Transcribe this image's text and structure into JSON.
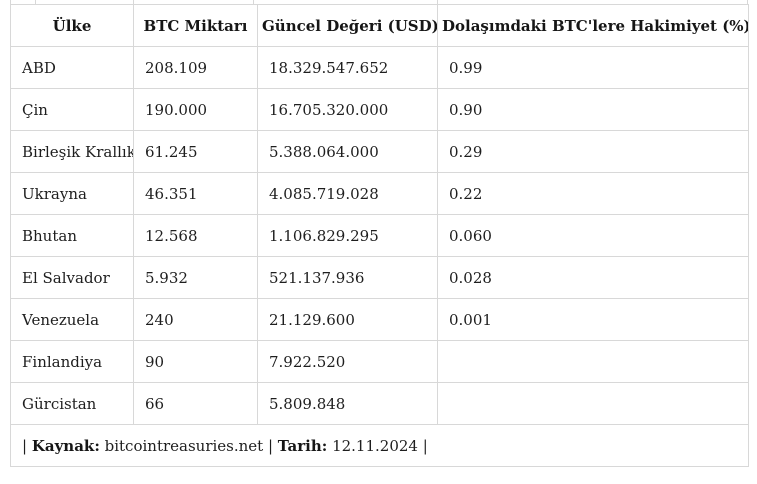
{
  "chart_data": {
    "type": "table",
    "title": "",
    "columns": [
      "Ülke",
      "BTC Miktarı",
      "Güncel Değeri (USD)",
      "Dolaşımdaki BTC'lere Hakimiyet (%)"
    ],
    "rows": [
      [
        "ABD",
        "208.109",
        "18.329.547.652",
        "0.99"
      ],
      [
        "Çin",
        "190.000",
        "16.705.320.000",
        "0.90"
      ],
      [
        "Birleşik Krallık",
        "61.245",
        "5.388.064.000",
        "0.29"
      ],
      [
        "Ukrayna",
        "46.351",
        "4.085.719.028",
        "0.22"
      ],
      [
        "Bhutan",
        "12.568",
        "1.106.829.295",
        "0.060"
      ],
      [
        "El Salvador",
        "5.932",
        "521.137.936",
        "0.028"
      ],
      [
        "Venezuela",
        "240",
        "21.129.600",
        "0.001"
      ],
      [
        "Finlandiya",
        "90",
        "7.922.520",
        ""
      ],
      [
        "Gürcistan",
        "66",
        "5.809.848",
        ""
      ]
    ],
    "source_note": "| Kaynak: bitcointreasuries.net | Tarih: 12.11.2024 |"
  },
  "footer": {
    "pipe_open": "| ",
    "source_label": "Kaynak:",
    "source_value": " bitcointreasuries.net | ",
    "date_label": "Tarih:",
    "date_value": " 12.11.2024 |"
  },
  "colors": {
    "border": "#d8d8d8",
    "text": "#1e1e1e",
    "background": "#ffffff"
  }
}
